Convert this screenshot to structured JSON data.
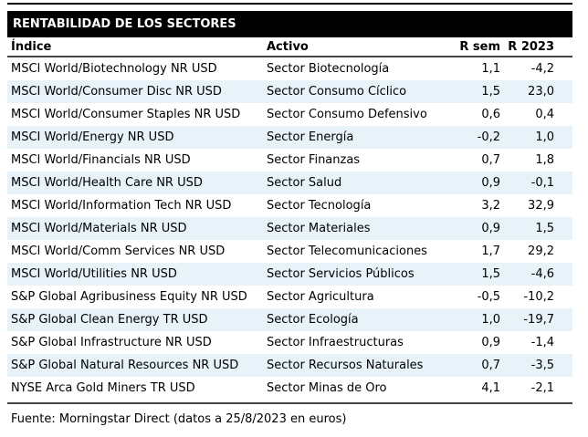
{
  "chart_data": {
    "type": "table",
    "title": "RENTABILIDAD DE LOS SECTORES",
    "columns": [
      "Índice",
      "Activo",
      "R sem",
      "R 2023"
    ],
    "rows": [
      [
        "MSCI World/Biotechnology NR USD",
        "Sector Biotecnología",
        "1,1",
        "-4,2"
      ],
      [
        "MSCI World/Consumer Disc NR USD",
        "Sector Consumo Cíclico",
        "1,5",
        "23,0"
      ],
      [
        "MSCI World/Consumer Staples NR USD",
        "Sector Consumo Defensivo",
        "0,6",
        "0,4"
      ],
      [
        "MSCI World/Energy NR USD",
        "Sector Energía",
        "-0,2",
        "1,0"
      ],
      [
        "MSCI World/Financials NR USD",
        "Sector Finanzas",
        "0,7",
        "1,8"
      ],
      [
        "MSCI World/Health Care NR USD",
        "Sector Salud",
        "0,9",
        "-0,1"
      ],
      [
        "MSCI World/Information Tech NR USD",
        "Sector Tecnología",
        "3,2",
        "32,9"
      ],
      [
        "MSCI World/Materials NR USD",
        "Sector Materiales",
        "0,9",
        "1,5"
      ],
      [
        "MSCI World/Comm Services NR USD",
        "Sector Telecomunicaciones",
        "1,7",
        "29,2"
      ],
      [
        "MSCI World/Utilities NR USD",
        "Sector Servicios Públicos",
        "1,5",
        "-4,6"
      ],
      [
        "S&P Global Agribusiness Equity NR USD",
        "Sector Agricultura",
        "-0,5",
        "-10,2"
      ],
      [
        "S&P Global Clean Energy TR USD",
        "Sector Ecología",
        "1,0",
        "-19,7"
      ],
      [
        "S&P Global Infrastructure NR USD",
        "Sector Infraestructuras",
        "0,9",
        "-1,4"
      ],
      [
        "S&P Global Natural Resources NR USD",
        "Sector Recursos Naturales",
        "0,7",
        "-3,5"
      ],
      [
        "NYSE Arca Gold Miners TR USD",
        "Sector Minas de Oro",
        "4,1",
        "-2,1"
      ]
    ],
    "source": "Fuente: Morningstar Direct (datos a 25/8/2023 en euros)",
    "layout": {
      "alternating_row_shading": true,
      "numeric_columns_alignment": "right"
    }
  },
  "colors": {
    "title_bar_bg": "#000000",
    "title_bar_text": "#ffffff",
    "row_alt_bg": "#e7f3f9",
    "rule_dark": "#000000",
    "header_rule": "#454545",
    "text": "#000000"
  }
}
